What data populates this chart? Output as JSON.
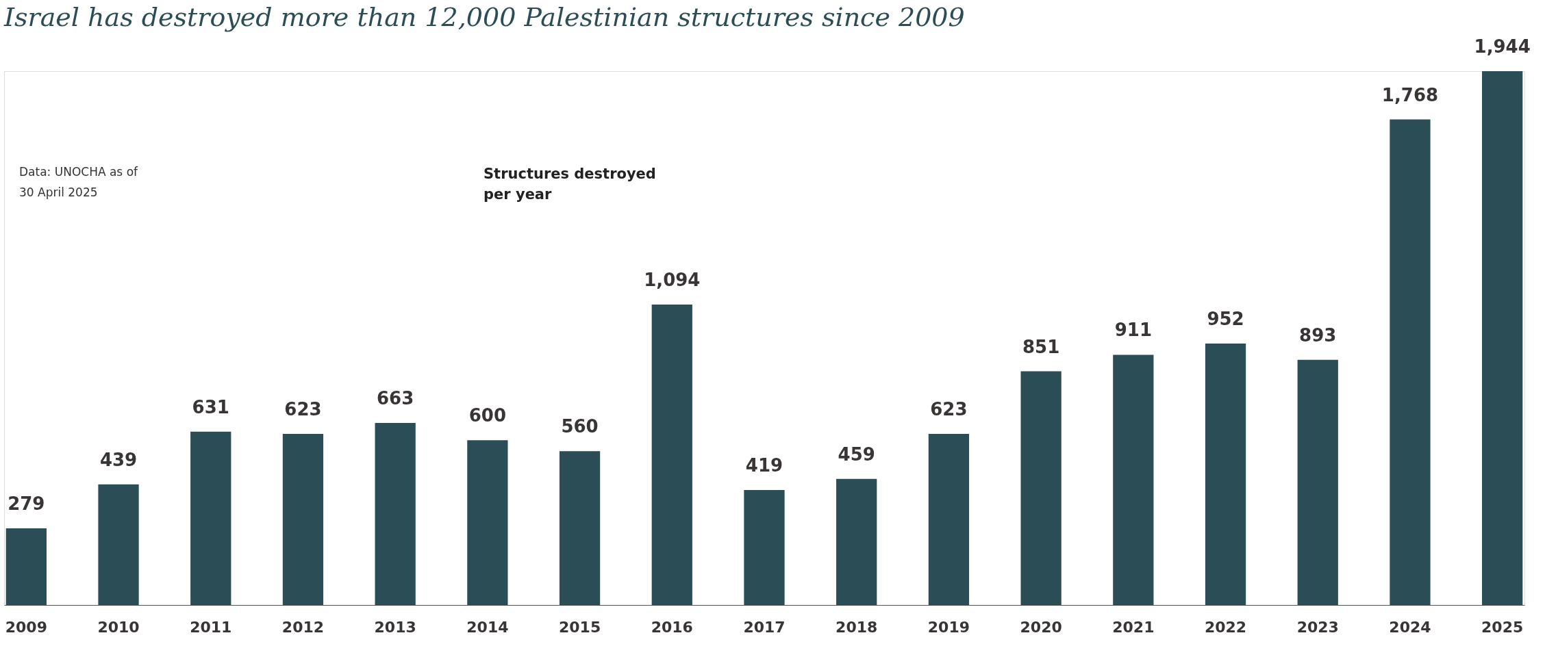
{
  "chart_data": {
    "type": "bar",
    "title": "Israel has destroyed more than 12,000 Palestinian structures since 2009",
    "categories": [
      "2009",
      "2010",
      "2011",
      "2012",
      "2013",
      "2014",
      "2015",
      "2016",
      "2017",
      "2018",
      "2019",
      "2020",
      "2021",
      "2022",
      "2023",
      "2024",
      "2025"
    ],
    "values": [
      279,
      439,
      631,
      623,
      663,
      600,
      560,
      1094,
      419,
      459,
      623,
      851,
      911,
      952,
      893,
      1768,
      1944
    ],
    "color": "#2b4d55",
    "value_labels": [
      "279",
      "439",
      "631",
      "623",
      "663",
      "600",
      "560",
      "1,094",
      "419",
      "459",
      "623",
      "851",
      "911",
      "952",
      "893",
      "1,768",
      "1,944"
    ],
    "annotations": [
      "Data: UNOCHA as of\n        30 April 2025",
      "Structures destroyed\nper year"
    ]
  }
}
